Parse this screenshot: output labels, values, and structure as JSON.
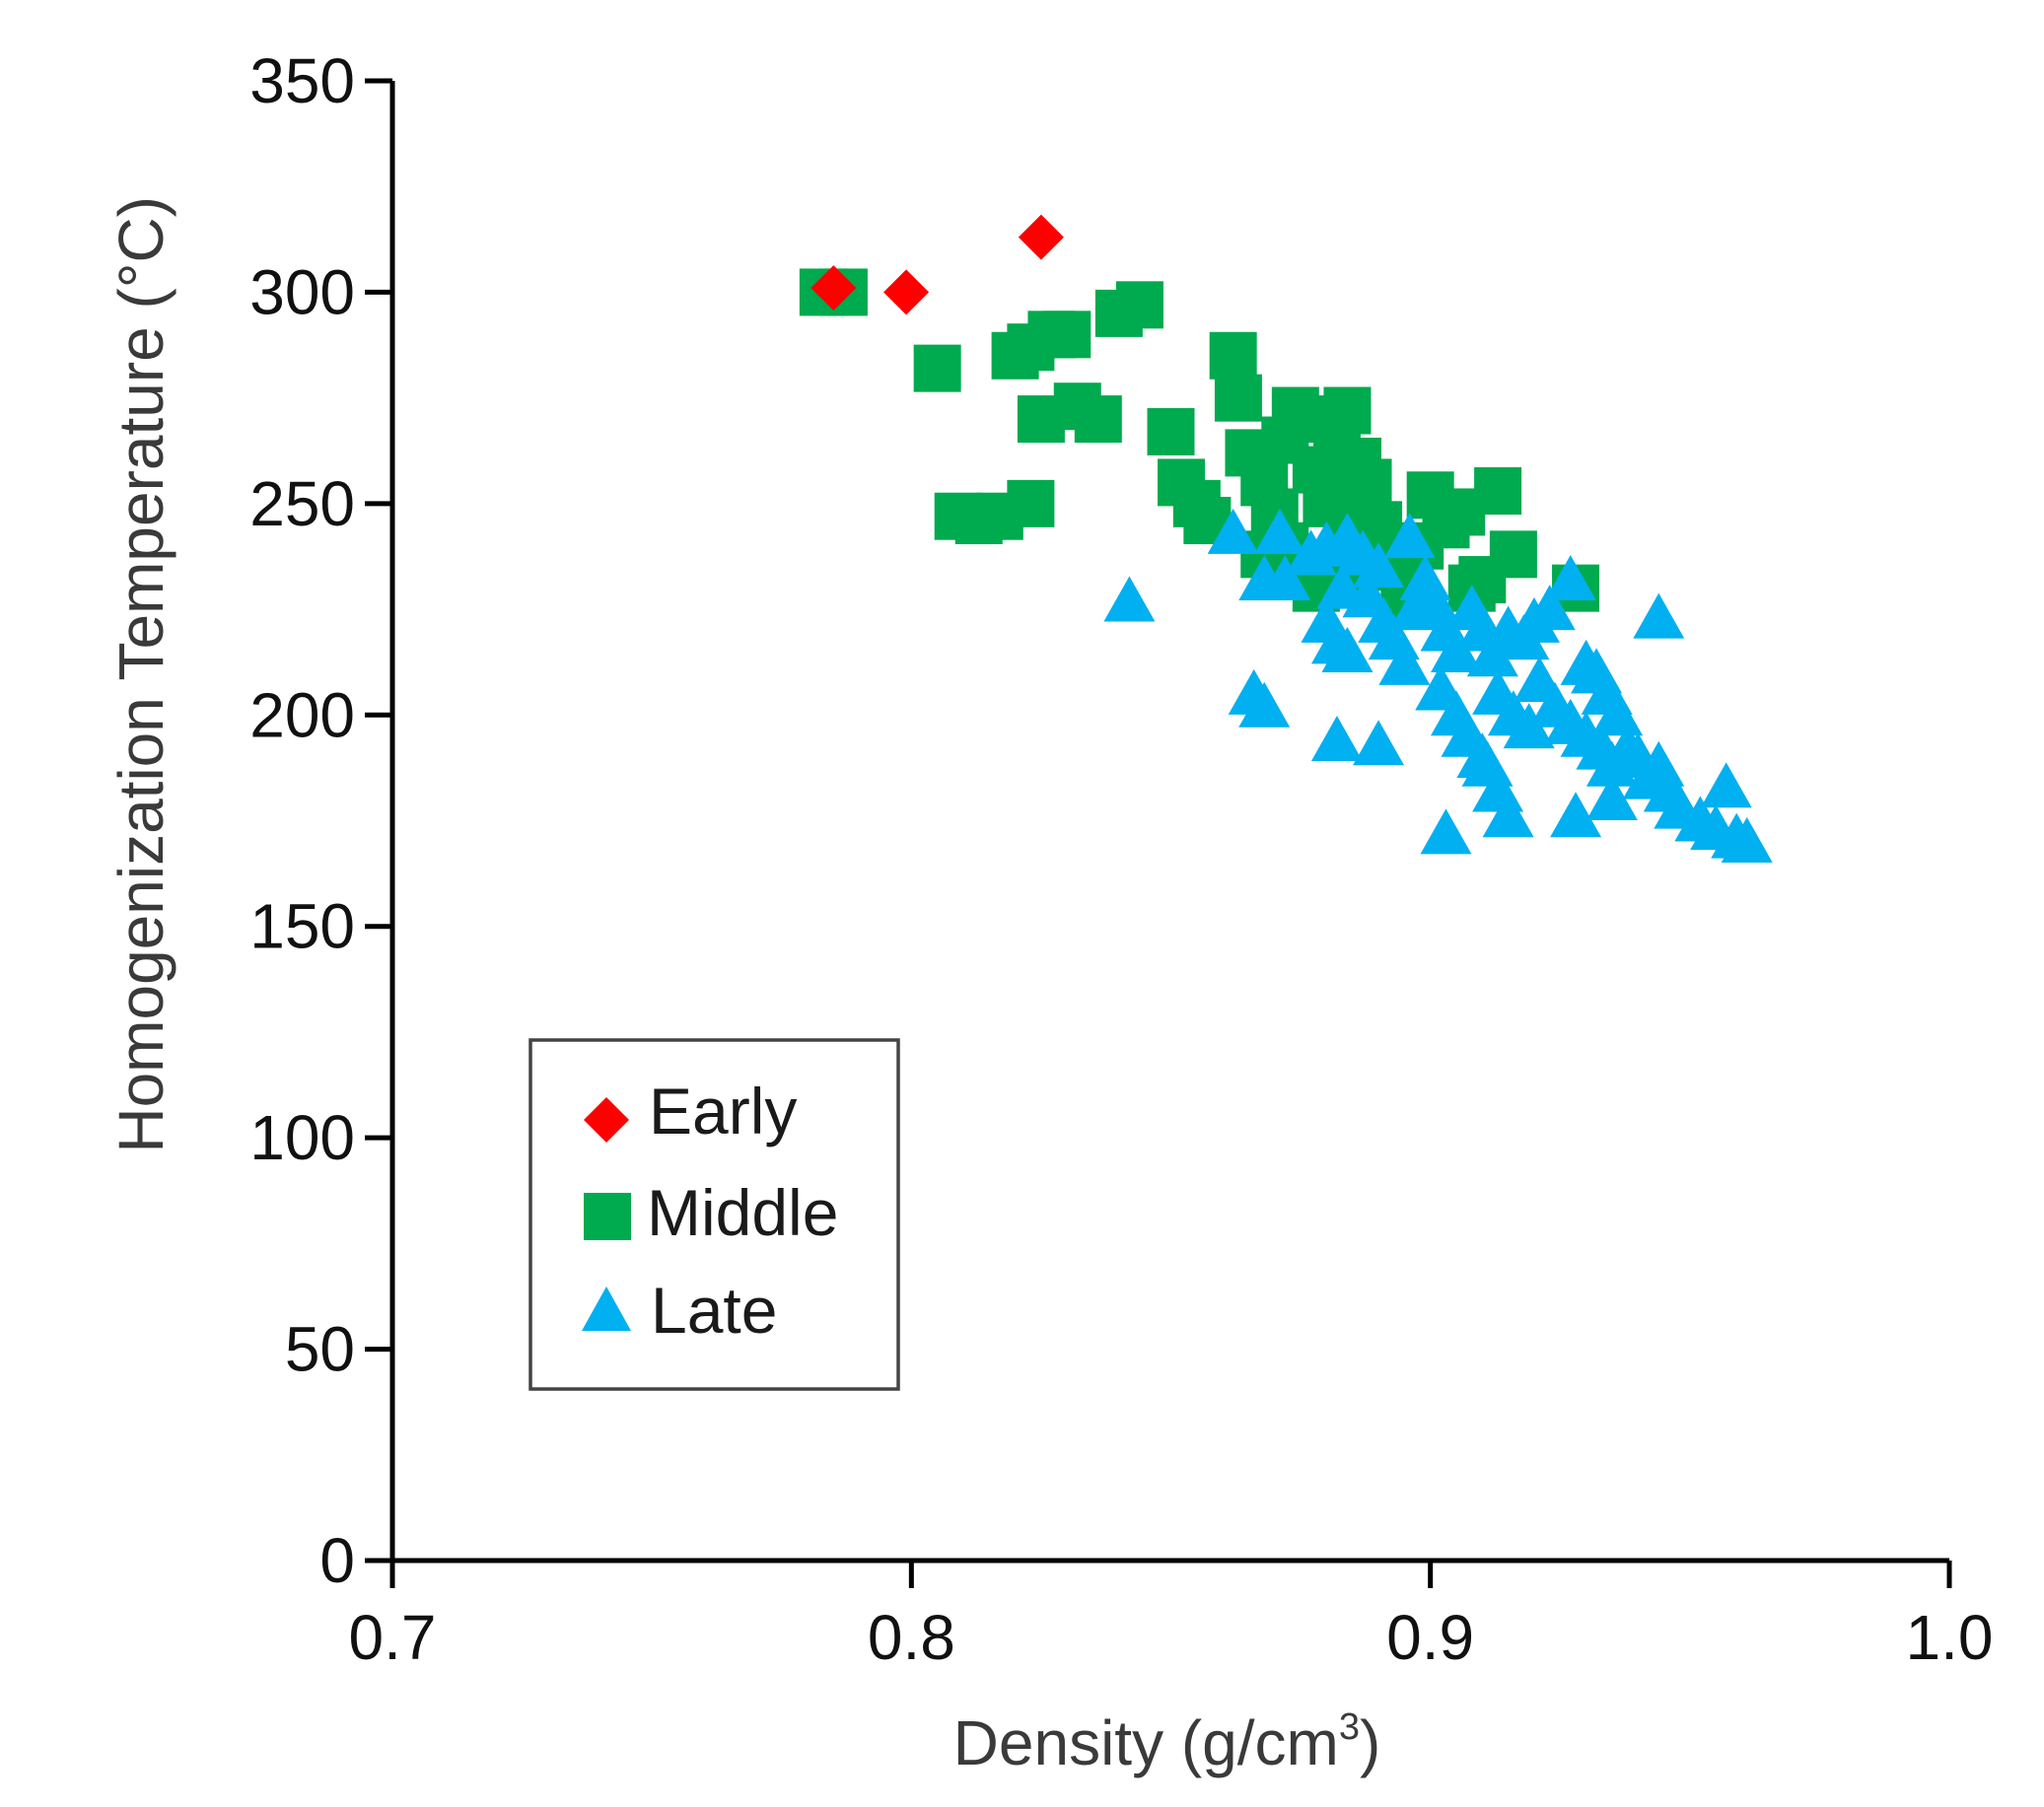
{
  "chart_data": {
    "type": "scatter",
    "title": "",
    "xlabel": "Density (g/cm",
    "xlabel_sup": "3",
    "xlabel_close": ")",
    "ylabel": "Homogenization Temperature (°C)",
    "xlim": [
      0.7,
      1.0
    ],
    "ylim": [
      0,
      350
    ],
    "xticks": [
      0.7,
      0.8,
      0.9,
      1.0
    ],
    "xtick_labels": [
      "0.7",
      "0.8",
      "0.9",
      "1.0"
    ],
    "yticks": [
      0,
      50,
      100,
      150,
      200,
      250,
      300,
      350
    ],
    "ytick_labels": [
      "0",
      "50",
      "100",
      "150",
      "200",
      "250",
      "300",
      "350"
    ],
    "grid": false,
    "legend_position": "lower-left",
    "series": [
      {
        "name": "Early",
        "marker": "diamond",
        "color": "#ff0000",
        "points": [
          [
            0.785,
            301
          ],
          [
            0.799,
            300
          ],
          [
            0.825,
            313
          ]
        ]
      },
      {
        "name": "Middle",
        "marker": "square",
        "color": "#00aa4e",
        "points": [
          [
            0.783,
            300
          ],
          [
            0.787,
            300
          ],
          [
            0.805,
            282
          ],
          [
            0.82,
            285
          ],
          [
            0.823,
            287
          ],
          [
            0.827,
            290
          ],
          [
            0.83,
            290
          ],
          [
            0.825,
            270
          ],
          [
            0.832,
            273
          ],
          [
            0.836,
            270
          ],
          [
            0.84,
            295
          ],
          [
            0.844,
            297
          ],
          [
            0.809,
            247
          ],
          [
            0.813,
            246
          ],
          [
            0.817,
            247
          ],
          [
            0.823,
            250
          ],
          [
            0.85,
            267
          ],
          [
            0.852,
            255
          ],
          [
            0.855,
            250
          ],
          [
            0.857,
            246
          ],
          [
            0.862,
            285
          ],
          [
            0.863,
            275
          ],
          [
            0.865,
            262
          ],
          [
            0.868,
            255
          ],
          [
            0.87,
            248
          ],
          [
            0.872,
            265
          ],
          [
            0.874,
            272
          ],
          [
            0.876,
            270
          ],
          [
            0.878,
            258
          ],
          [
            0.88,
            250
          ],
          [
            0.882,
            265
          ],
          [
            0.884,
            272
          ],
          [
            0.886,
            260
          ],
          [
            0.888,
            255
          ],
          [
            0.885,
            245
          ],
          [
            0.872,
            240
          ],
          [
            0.868,
            238
          ],
          [
            0.878,
            230
          ],
          [
            0.882,
            235
          ],
          [
            0.886,
            240
          ],
          [
            0.89,
            245
          ],
          [
            0.893,
            235
          ],
          [
            0.895,
            228
          ],
          [
            0.898,
            240
          ],
          [
            0.9,
            252
          ],
          [
            0.903,
            245
          ],
          [
            0.906,
            248
          ],
          [
            0.91,
            232
          ],
          [
            0.908,
            230
          ],
          [
            0.913,
            253
          ],
          [
            0.916,
            238
          ],
          [
            0.928,
            230
          ]
        ]
      },
      {
        "name": "Late",
        "marker": "triangle",
        "color": "#00b0f0",
        "points": [
          [
            0.842,
            227
          ],
          [
            0.862,
            243
          ],
          [
            0.871,
            243
          ],
          [
            0.868,
            232
          ],
          [
            0.872,
            232
          ],
          [
            0.866,
            205
          ],
          [
            0.868,
            202
          ],
          [
            0.877,
            238
          ],
          [
            0.88,
            240
          ],
          [
            0.884,
            242
          ],
          [
            0.887,
            238
          ],
          [
            0.89,
            235
          ],
          [
            0.883,
            230
          ],
          [
            0.888,
            228
          ],
          [
            0.88,
            222
          ],
          [
            0.882,
            217
          ],
          [
            0.884,
            215
          ],
          [
            0.896,
            242
          ],
          [
            0.891,
            222
          ],
          [
            0.893,
            218
          ],
          [
            0.895,
            212
          ],
          [
            0.897,
            225
          ],
          [
            0.899,
            232
          ],
          [
            0.901,
            226
          ],
          [
            0.903,
            220
          ],
          [
            0.905,
            215
          ],
          [
            0.908,
            225
          ],
          [
            0.91,
            220
          ],
          [
            0.912,
            214
          ],
          [
            0.915,
            220
          ],
          [
            0.918,
            218
          ],
          [
            0.92,
            222
          ],
          [
            0.923,
            225
          ],
          [
            0.927,
            232
          ],
          [
            0.902,
            206
          ],
          [
            0.905,
            200
          ],
          [
            0.907,
            195
          ],
          [
            0.91,
            190
          ],
          [
            0.913,
            205
          ],
          [
            0.916,
            200
          ],
          [
            0.919,
            197
          ],
          [
            0.921,
            208
          ],
          [
            0.924,
            202
          ],
          [
            0.927,
            198
          ],
          [
            0.93,
            212
          ],
          [
            0.932,
            210
          ],
          [
            0.934,
            205
          ],
          [
            0.936,
            200
          ],
          [
            0.93,
            195
          ],
          [
            0.933,
            192
          ],
          [
            0.935,
            188
          ],
          [
            0.938,
            192
          ],
          [
            0.94,
            190
          ],
          [
            0.942,
            185
          ],
          [
            0.944,
            188
          ],
          [
            0.946,
            182
          ],
          [
            0.948,
            178
          ],
          [
            0.935,
            180
          ],
          [
            0.928,
            176
          ],
          [
            0.952,
            175
          ],
          [
            0.955,
            173
          ],
          [
            0.957,
            183
          ],
          [
            0.959,
            171
          ],
          [
            0.961,
            170
          ],
          [
            0.944,
            223
          ],
          [
            0.882,
            194
          ],
          [
            0.89,
            193
          ],
          [
            0.903,
            172
          ],
          [
            0.913,
            182
          ],
          [
            0.915,
            176
          ],
          [
            0.911,
            188
          ]
        ]
      }
    ]
  }
}
